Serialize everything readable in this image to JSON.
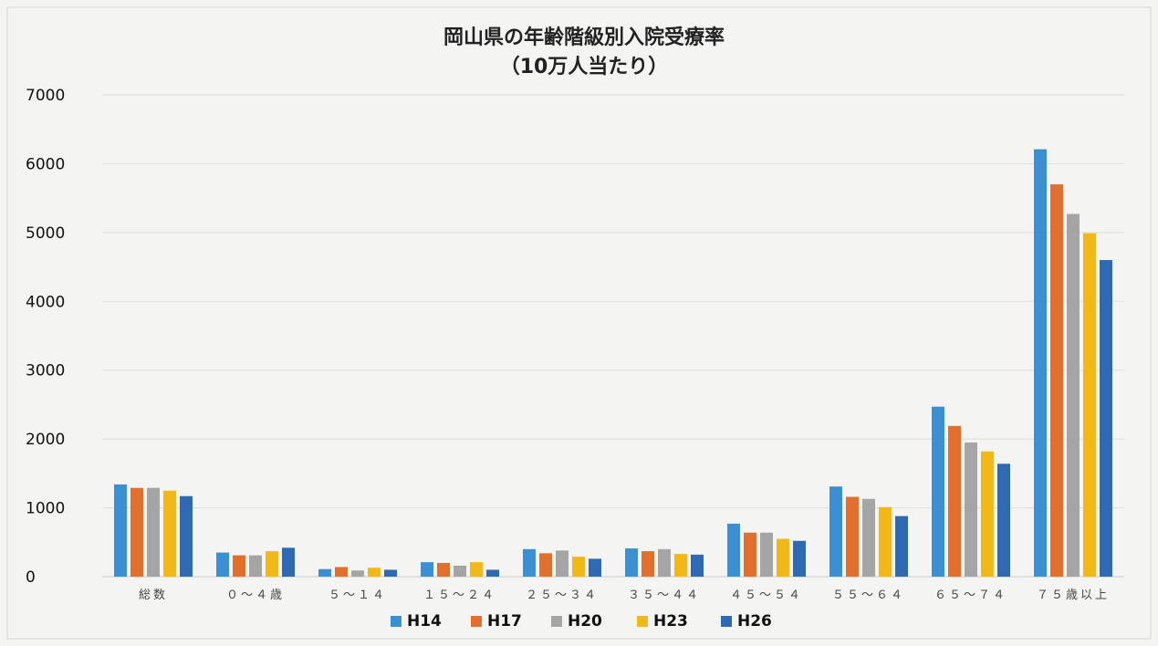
{
  "chart_data": {
    "type": "bar",
    "title": [
      "岡山県の年齢階級別入院受療率",
      "（10万人当たり）"
    ],
    "xlabel": "",
    "ylabel": "",
    "ylim": [
      0,
      7000
    ],
    "yticks": [
      0,
      1000,
      2000,
      3000,
      4000,
      5000,
      6000,
      7000
    ],
    "grid": true,
    "legend_position": "bottom",
    "categories": [
      "総数",
      "０～４歳",
      "５～１４",
      "１５～２４",
      "２５～３４",
      "３５～４４",
      "４５～５４",
      "５５～６４",
      "６５～７４",
      "７５歳以上"
    ],
    "series": [
      {
        "name": "H14",
        "color": "#3b8fd3",
        "values": [
          1340,
          350,
          110,
          210,
          400,
          410,
          770,
          1310,
          2470,
          6210
        ]
      },
      {
        "name": "H17",
        "color": "#e26f2e",
        "values": [
          1290,
          310,
          140,
          200,
          340,
          370,
          640,
          1160,
          2190,
          5700
        ]
      },
      {
        "name": "H20",
        "color": "#a5a5a5",
        "values": [
          1290,
          310,
          90,
          160,
          380,
          400,
          640,
          1130,
          1950,
          5270
        ]
      },
      {
        "name": "H23",
        "color": "#f2b81a",
        "values": [
          1250,
          370,
          130,
          210,
          290,
          330,
          550,
          1010,
          1820,
          4990
        ]
      },
      {
        "name": "H26",
        "color": "#2e69b4",
        "values": [
          1170,
          420,
          100,
          100,
          260,
          320,
          520,
          880,
          1640,
          4600
        ]
      }
    ]
  }
}
